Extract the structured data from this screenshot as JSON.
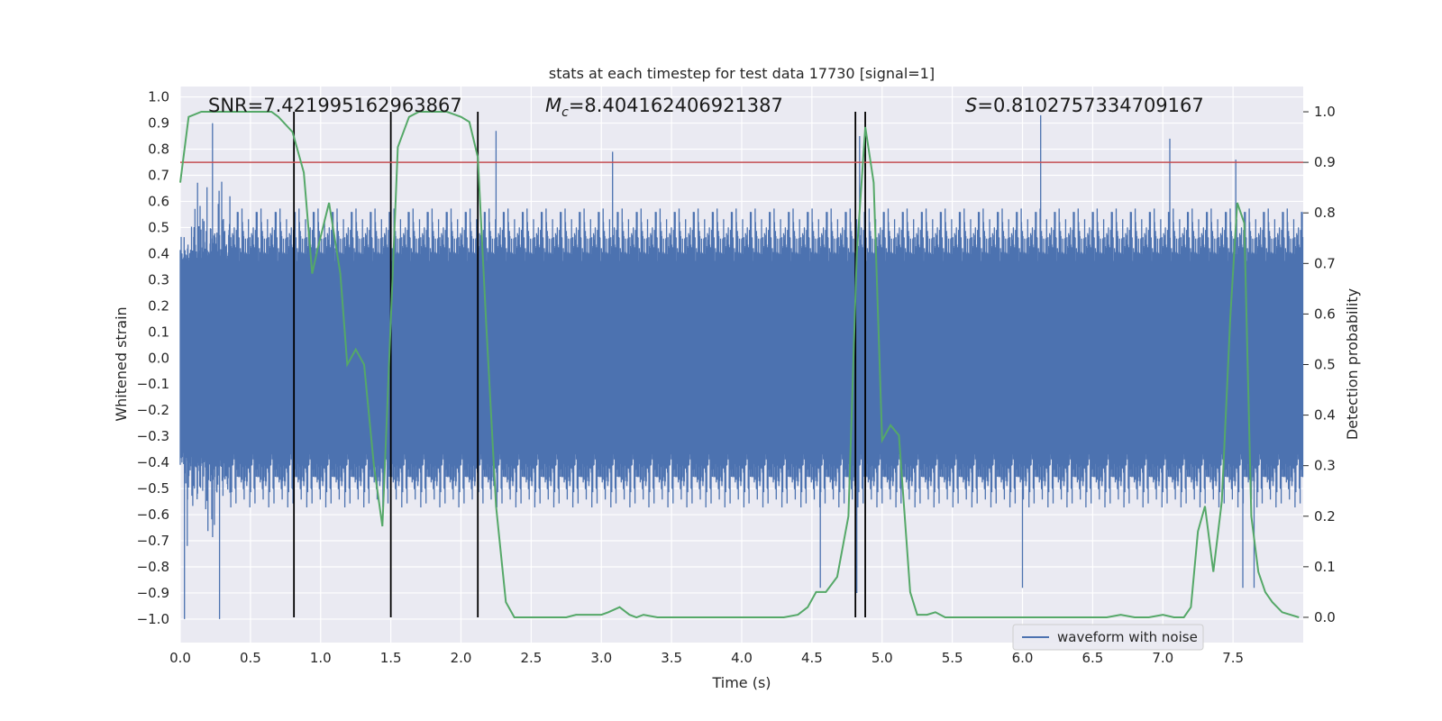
{
  "chart_data": {
    "type": "line",
    "title": "stats at each timestep for test data 17730 [signal=1]",
    "xlabel": "Time (s)",
    "ylabel_left": "Whitened strain",
    "ylabel_right": "Detection probability",
    "xlim": [
      0.0,
      8.0
    ],
    "ylim_left": [
      -1.09,
      1.04
    ],
    "ylim_right": [
      -0.05,
      1.05
    ],
    "x_ticks": [
      "0.0",
      "0.5",
      "1.0",
      "1.5",
      "2.0",
      "2.5",
      "3.0",
      "3.5",
      "4.0",
      "4.5",
      "5.0",
      "5.5",
      "6.0",
      "6.5",
      "7.0",
      "7.5"
    ],
    "y_left_ticks": [
      "1.0",
      "0.9",
      "0.8",
      "0.7",
      "0.6",
      "0.5",
      "0.4",
      "0.3",
      "0.2",
      "0.1",
      "0.0",
      "−0.1",
      "−0.2",
      "−0.3",
      "−0.4",
      "−0.5",
      "−0.6",
      "−0.7",
      "−0.8",
      "−0.9",
      "−1.0"
    ],
    "y_right_ticks": [
      "1.0",
      "0.9",
      "0.8",
      "0.7",
      "0.6",
      "0.5",
      "0.4",
      "0.3",
      "0.2",
      "0.1",
      "0.0"
    ],
    "annotations": {
      "snr": "SNR=7.421995162963867",
      "mc_symbol": "M",
      "mc_sub": "c",
      "mc_value": "=8.404162406921387",
      "s_symbol": "S",
      "s_value": "=0.8102757334709167"
    },
    "threshold": {
      "value": 0.9,
      "axis": "right",
      "color": "#c44e52"
    },
    "vertical_markers": [
      0.81,
      1.5,
      2.12,
      4.81,
      4.88
    ],
    "series": [
      {
        "name": "waveform with noise",
        "axis": "left",
        "color": "#4c72b0",
        "style": "dense noise, typical amplitude ±0.45, peaks to ±1.0",
        "duration": 8.0,
        "notable_peaks": [
          [
            0.03,
            -1.0
          ],
          [
            0.05,
            -0.72
          ],
          [
            0.23,
            0.9
          ],
          [
            0.28,
            -1.0
          ],
          [
            2.25,
            0.87
          ],
          [
            3.08,
            0.79
          ],
          [
            4.56,
            -0.88
          ],
          [
            4.82,
            -0.9
          ],
          [
            4.84,
            0.85
          ],
          [
            6.13,
            0.93
          ],
          [
            6.0,
            -0.88
          ],
          [
            7.05,
            0.84
          ],
          [
            7.57,
            -0.88
          ],
          [
            7.65,
            -0.88
          ],
          [
            7.52,
            0.76
          ]
        ]
      },
      {
        "name": "detection probability",
        "axis": "right",
        "color": "#55a868",
        "x": [
          0.0,
          0.06,
          0.15,
          0.3,
          0.5,
          0.65,
          0.7,
          0.8,
          0.88,
          0.94,
          0.98,
          1.06,
          1.14,
          1.19,
          1.25,
          1.31,
          1.38,
          1.44,
          1.48,
          1.55,
          1.63,
          1.7,
          1.8,
          1.9,
          2.0,
          2.06,
          2.12,
          2.18,
          2.25,
          2.32,
          2.38,
          2.45,
          2.55,
          2.7,
          2.75,
          2.82,
          2.9,
          3.0,
          3.05,
          3.13,
          3.2,
          3.25,
          3.3,
          3.4,
          3.5,
          3.7,
          4.0,
          4.2,
          4.3,
          4.4,
          4.47,
          4.53,
          4.6,
          4.68,
          4.76,
          4.82,
          4.88,
          4.94,
          5.0,
          5.06,
          5.12,
          5.2,
          5.25,
          5.32,
          5.38,
          5.45,
          5.6,
          5.8,
          6.0,
          6.2,
          6.4,
          6.6,
          6.7,
          6.8,
          6.9,
          7.0,
          7.08,
          7.15,
          7.2,
          7.25,
          7.3,
          7.36,
          7.42,
          7.48,
          7.53,
          7.58,
          7.63,
          7.68,
          7.73,
          7.78,
          7.85,
          7.97
        ],
        "y": [
          0.86,
          0.99,
          1.0,
          1.0,
          1.0,
          1.0,
          0.99,
          0.96,
          0.88,
          0.68,
          0.73,
          0.82,
          0.68,
          0.5,
          0.53,
          0.5,
          0.3,
          0.18,
          0.45,
          0.93,
          0.99,
          1.0,
          1.0,
          1.0,
          0.99,
          0.98,
          0.91,
          0.58,
          0.22,
          0.03,
          0.0,
          0.0,
          0.0,
          0.0,
          0.0,
          0.005,
          0.005,
          0.005,
          0.01,
          0.02,
          0.005,
          0.0,
          0.005,
          0.0,
          0.0,
          0.0,
          0.0,
          0.0,
          0.0,
          0.005,
          0.02,
          0.05,
          0.05,
          0.08,
          0.2,
          0.72,
          0.97,
          0.86,
          0.35,
          0.38,
          0.36,
          0.05,
          0.005,
          0.005,
          0.01,
          0.0,
          0.0,
          0.0,
          0.0,
          0.0,
          0.0,
          0.0,
          0.005,
          0.0,
          0.0,
          0.005,
          0.0,
          0.0,
          0.02,
          0.17,
          0.22,
          0.09,
          0.23,
          0.59,
          0.82,
          0.78,
          0.2,
          0.09,
          0.05,
          0.03,
          0.01,
          0.0
        ]
      }
    ],
    "legend": {
      "label": "waveform with noise",
      "placement": "lower-right"
    },
    "grid": true,
    "background": "#eaeaf2"
  }
}
